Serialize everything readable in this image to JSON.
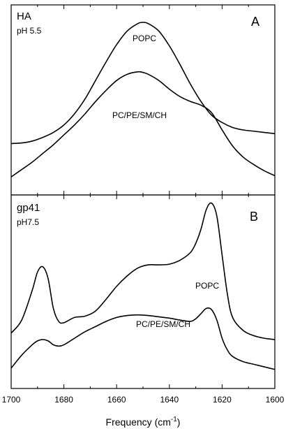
{
  "chart_data": {
    "type": "line",
    "xlabel": "Frequency (cm-1)",
    "xlabel_main": "Frequency (cm",
    "xlabel_sup": "-1",
    "xlabel_close": ")",
    "xlim": [
      1700,
      1600
    ],
    "x_reversed": true,
    "xticks": [
      "1700",
      "1680",
      "1660",
      "1640",
      "1620",
      "1600"
    ],
    "panels": [
      {
        "letter": "A",
        "title": "HA",
        "subtitle": "pH 5.5",
        "series": [
          {
            "name": "POPC",
            "x": [
              1700,
              1696,
              1692,
              1688,
              1684,
              1680,
              1676,
              1672,
              1668,
              1664,
              1660,
              1656,
              1652,
              1650,
              1648,
              1644,
              1640,
              1636,
              1632,
              1628,
              1624,
              1620,
              1616,
              1612,
              1608,
              1604,
              1600
            ],
            "y": [
              0.02,
              0.025,
              0.04,
              0.07,
              0.11,
              0.17,
              0.26,
              0.38,
              0.53,
              0.68,
              0.82,
              0.93,
              0.99,
              1.0,
              0.99,
              0.93,
              0.81,
              0.66,
              0.5,
              0.36,
              0.25,
              0.19,
              0.15,
              0.13,
              0.12,
              0.11,
              0.1
            ]
          },
          {
            "name": "PC/PE/SM/CH",
            "x": [
              1700,
              1696,
              1692,
              1688,
              1684,
              1680,
              1676,
              1672,
              1668,
              1664,
              1660,
              1656,
              1652,
              1650,
              1648,
              1644,
              1640,
              1636,
              1632,
              1628,
              1624,
              1620,
              1616,
              1612,
              1608,
              1604,
              1600
            ],
            "y": [
              -0.25,
              -0.19,
              -0.13,
              -0.06,
              0.01,
              0.09,
              0.17,
              0.26,
              0.36,
              0.45,
              0.53,
              0.58,
              0.6,
              0.595,
              0.58,
              0.53,
              0.46,
              0.4,
              0.36,
              0.33,
              0.27,
              0.13,
              0.0,
              -0.09,
              -0.15,
              -0.2,
              -0.24
            ]
          }
        ]
      },
      {
        "letter": "B",
        "title": "gp41",
        "subtitle": "pH7.5",
        "series": [
          {
            "name": "POPC",
            "x": [
              1700,
              1696,
              1692,
              1690,
              1688,
              1686,
              1684,
              1682,
              1680,
              1676,
              1672,
              1668,
              1664,
              1660,
              1656,
              1652,
              1648,
              1644,
              1640,
              1636,
              1632,
              1630,
              1628,
              1626,
              1624,
              1622,
              1620,
              1618,
              1616,
              1612,
              1608,
              1604,
              1600
            ],
            "y": [
              0.05,
              0.15,
              0.38,
              0.52,
              0.56,
              0.47,
              0.24,
              0.14,
              0.13,
              0.17,
              0.18,
              0.22,
              0.31,
              0.41,
              0.49,
              0.55,
              0.575,
              0.575,
              0.58,
              0.61,
              0.67,
              0.74,
              0.85,
              1.0,
              1.05,
              0.95,
              0.65,
              0.35,
              0.17,
              0.07,
              0.03,
              0.01,
              0.0
            ]
          },
          {
            "name": "PC/PE/SM/CH",
            "x": [
              1700,
              1696,
              1692,
              1690,
              1688,
              1686,
              1684,
              1682,
              1680,
              1676,
              1672,
              1668,
              1664,
              1660,
              1656,
              1652,
              1648,
              1644,
              1640,
              1636,
              1632,
              1630,
              1628,
              1626,
              1624,
              1622,
              1620,
              1618,
              1616,
              1612,
              1608,
              1604,
              1600
            ],
            "y": [
              -0.22,
              -0.12,
              -0.04,
              -0.01,
              0.0,
              -0.01,
              -0.04,
              -0.05,
              -0.04,
              0.01,
              0.06,
              0.1,
              0.14,
              0.17,
              0.185,
              0.19,
              0.185,
              0.175,
              0.165,
              0.15,
              0.14,
              0.16,
              0.2,
              0.24,
              0.23,
              0.15,
              0.01,
              -0.08,
              -0.13,
              -0.17,
              -0.19,
              -0.21,
              -0.23
            ]
          }
        ]
      }
    ]
  }
}
